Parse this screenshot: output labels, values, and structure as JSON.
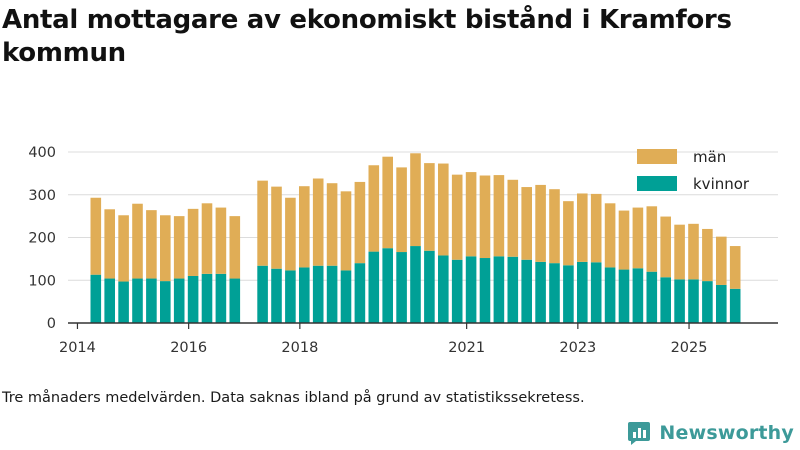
{
  "title": "Antal mottagare av ekonomiskt bistånd i Kramfors kommun",
  "footnote": "Tre månaders medelvärden. Data saknas ibland på grund av statistikssekretess.",
  "brand": "Newsworthy",
  "colors": {
    "women": "#00a096",
    "men": "#e0ad56",
    "axis": "#333333",
    "grid": "#dcdcdc",
    "brand": "#3d9a99"
  },
  "chart_data": {
    "type": "bar",
    "stacked": true,
    "title": "Antal mottagare av ekonomiskt bistånd i Kramfors kommun",
    "xlabel": "",
    "ylabel": "",
    "ylim": [
      0,
      400
    ],
    "yticks": [
      0,
      100,
      200,
      300,
      400
    ],
    "xlim": [
      2013.83,
      2026.6
    ],
    "xticks": [
      {
        "value": 2014.0,
        "label": "2014"
      },
      {
        "value": 2016.0,
        "label": "2016"
      },
      {
        "value": 2018.0,
        "label": "2018"
      },
      {
        "value": 2021.0,
        "label": "2021"
      },
      {
        "value": 2023.0,
        "label": "2023"
      },
      {
        "value": 2025.0,
        "label": "2025"
      }
    ],
    "legend": [
      "män",
      "kvinnor"
    ],
    "legend_position": "top-right",
    "x": [
      2014.33,
      2014.58,
      2014.83,
      2015.08,
      2015.33,
      2015.58,
      2015.83,
      2016.08,
      2016.33,
      2016.58,
      2016.83,
      2017.33,
      2017.58,
      2017.83,
      2018.08,
      2018.33,
      2018.58,
      2018.83,
      2019.08,
      2019.33,
      2019.58,
      2019.83,
      2020.08,
      2020.33,
      2020.58,
      2020.83,
      2021.08,
      2021.33,
      2021.58,
      2021.83,
      2022.08,
      2022.33,
      2022.58,
      2022.83,
      2023.08,
      2023.33,
      2023.58,
      2023.83,
      2024.08,
      2024.33,
      2024.58,
      2024.83,
      2025.08,
      2025.33,
      2025.58,
      2025.83
    ],
    "series": [
      {
        "name": "kvinnor",
        "values": [
          113,
          104,
          97,
          104,
          104,
          98,
          104,
          110,
          115,
          115,
          104,
          134,
          127,
          123,
          130,
          134,
          134,
          123,
          140,
          167,
          175,
          166,
          180,
          169,
          158,
          148,
          156,
          152,
          156,
          155,
          148,
          143,
          140,
          135,
          143,
          142,
          130,
          125,
          128,
          120,
          107,
          102,
          102,
          98,
          89,
          80
        ]
      },
      {
        "name": "män",
        "values": [
          180,
          162,
          155,
          175,
          160,
          154,
          146,
          157,
          165,
          155,
          146,
          199,
          192,
          170,
          190,
          204,
          193,
          185,
          190,
          202,
          214,
          198,
          217,
          205,
          215,
          199,
          197,
          193,
          190,
          180,
          170,
          180,
          173,
          150,
          160,
          160,
          150,
          138,
          142,
          153,
          142,
          128,
          130,
          122,
          113,
          100
        ]
      }
    ]
  }
}
